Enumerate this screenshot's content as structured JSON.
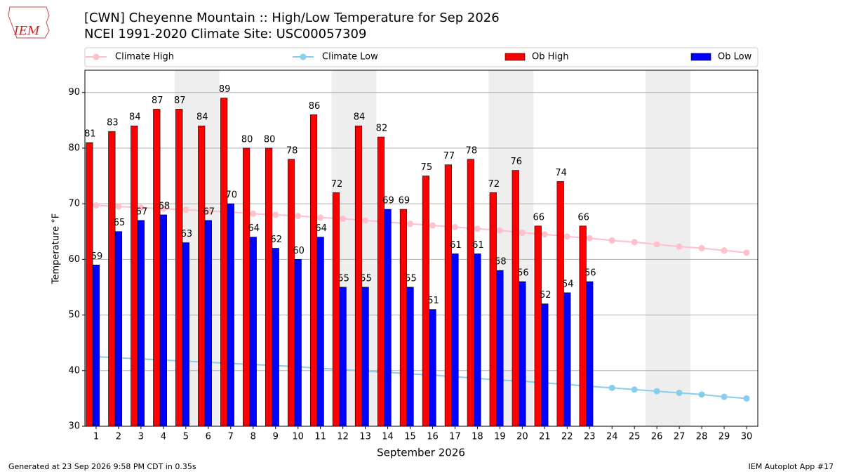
{
  "chart_data": {
    "type": "bar",
    "logo_text": "IEM",
    "title": "[CWN] Cheyenne Mountain :: High/Low Temperature for Sep 2026",
    "subtitle": "NCEI 1991-2020 Climate Site: USC00057309",
    "x_label": "September 2026",
    "y_label": "Temperature °F",
    "footer_left": "Generated at 23 Sep 2026 9:58 PM CDT in 0.35s",
    "footer_right": "IEM Autoplot App #17",
    "x": [
      1,
      2,
      3,
      4,
      5,
      6,
      7,
      8,
      9,
      10,
      11,
      12,
      13,
      14,
      15,
      16,
      17,
      18,
      19,
      20,
      21,
      22,
      23,
      24,
      25,
      26,
      27,
      28,
      29,
      30
    ],
    "xlim": [
      0.5,
      30.5
    ],
    "xticks": [
      1,
      2,
      3,
      4,
      5,
      6,
      7,
      8,
      9,
      10,
      11,
      12,
      13,
      14,
      15,
      16,
      17,
      18,
      19,
      20,
      21,
      22,
      23,
      24,
      25,
      26,
      27,
      28,
      29,
      30
    ],
    "ylim": [
      30,
      94
    ],
    "yticks": [
      30,
      40,
      50,
      60,
      70,
      80,
      90
    ],
    "grid": true,
    "shaded_days": [
      5,
      6,
      12,
      13,
      19,
      20,
      26,
      27
    ],
    "series": [
      {
        "name": "Climate High",
        "type": "line",
        "color": "#ffc0cb",
        "values": [
          69.7,
          69.5,
          69.3,
          69.1,
          68.9,
          68.7,
          68.5,
          68.2,
          68.0,
          67.8,
          67.5,
          67.3,
          67.0,
          66.7,
          66.4,
          66.1,
          65.8,
          65.5,
          65.2,
          64.8,
          64.5,
          64.1,
          63.8,
          63.4,
          63.1,
          62.7,
          62.3,
          62.0,
          61.6,
          61.2
        ]
      },
      {
        "name": "Climate Low",
        "type": "line",
        "color": "#87ceeb",
        "values": [
          42.5,
          42.3,
          42.1,
          41.9,
          41.7,
          41.5,
          41.3,
          41.1,
          40.9,
          40.7,
          40.4,
          40.2,
          39.9,
          39.7,
          39.4,
          39.2,
          38.9,
          38.6,
          38.3,
          38.1,
          37.8,
          37.5,
          37.2,
          36.9,
          36.6,
          36.3,
          36.0,
          35.7,
          35.3,
          35.0
        ]
      },
      {
        "name": "Ob High",
        "type": "bar",
        "color": "#ff0000",
        "values": [
          81,
          83,
          84,
          87,
          87,
          84,
          89,
          80,
          80,
          78,
          86,
          72,
          84,
          82,
          69,
          75,
          77,
          78,
          72,
          76,
          66,
          74,
          66,
          null,
          null,
          null,
          null,
          null,
          null,
          null
        ]
      },
      {
        "name": "Ob Low",
        "type": "bar",
        "color": "#0000ff",
        "values": [
          59,
          65,
          67,
          68,
          63,
          67,
          70,
          64,
          62,
          60,
          64,
          55,
          55,
          69,
          55,
          51,
          61,
          61,
          58,
          56,
          52,
          54,
          56,
          null,
          null,
          null,
          null,
          null,
          null,
          null
        ]
      }
    ]
  }
}
